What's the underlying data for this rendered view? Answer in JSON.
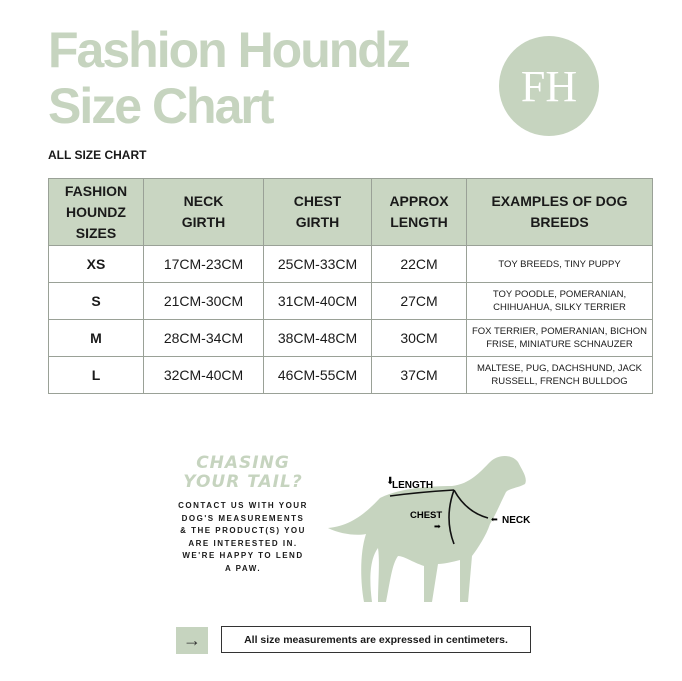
{
  "header": {
    "title_line1": "Fashion Houndz",
    "title_line2": "Size Chart",
    "logo_text": "FH",
    "subtitle": "ALL SIZE CHART"
  },
  "table": {
    "headers": [
      "FASHION HOUNDZ SIZES",
      "NECK GIRTH",
      "CHEST GIRTH",
      "APPROX LENGTH",
      "EXAMPLES OF DOG BREEDS"
    ],
    "rows": [
      [
        "XS",
        "17CM-23CM",
        "25CM-33CM",
        "22CM",
        "TOY BREEDS, TINY PUPPY"
      ],
      [
        "S",
        "21CM-30CM",
        "31CM-40CM",
        "27CM",
        "TOY POODLE, POMERANIAN, CHIHUAHUA, SILKY TERRIER"
      ],
      [
        "M",
        "28CM-34CM",
        "38CM-48CM",
        "30CM",
        "FOX TERRIER, POMERANIAN, BICHON FRISE, MINIATURE SCHNAUZER"
      ],
      [
        "L",
        "32CM-40CM",
        "46CM-55CM",
        "37CM",
        "MALTESE, PUG, DACHSHUND, JACK RUSSELL, FRENCH BULLDOG"
      ]
    ]
  },
  "promo": {
    "title_line1": "CHASING",
    "title_line2": "YOUR TAIL?",
    "text": "CONTACT US WITH YOUR DOG'S MEASUREMENTS & THE PRODUCT(S) YOU ARE INTERESTED IN. WE'RE HAPPY TO LEND A PAW."
  },
  "diagram": {
    "length_label": "LENGTH",
    "chest_label": "CHEST",
    "neck_label": "NECK",
    "icon": "dog-silhouette"
  },
  "footer": {
    "arrow_icon": "arrow-right-icon",
    "note": "All size measurements are expressed in centimeters."
  },
  "colors": {
    "brand_green": "#c6d4bf",
    "header_bg": "#c9d6c2"
  }
}
